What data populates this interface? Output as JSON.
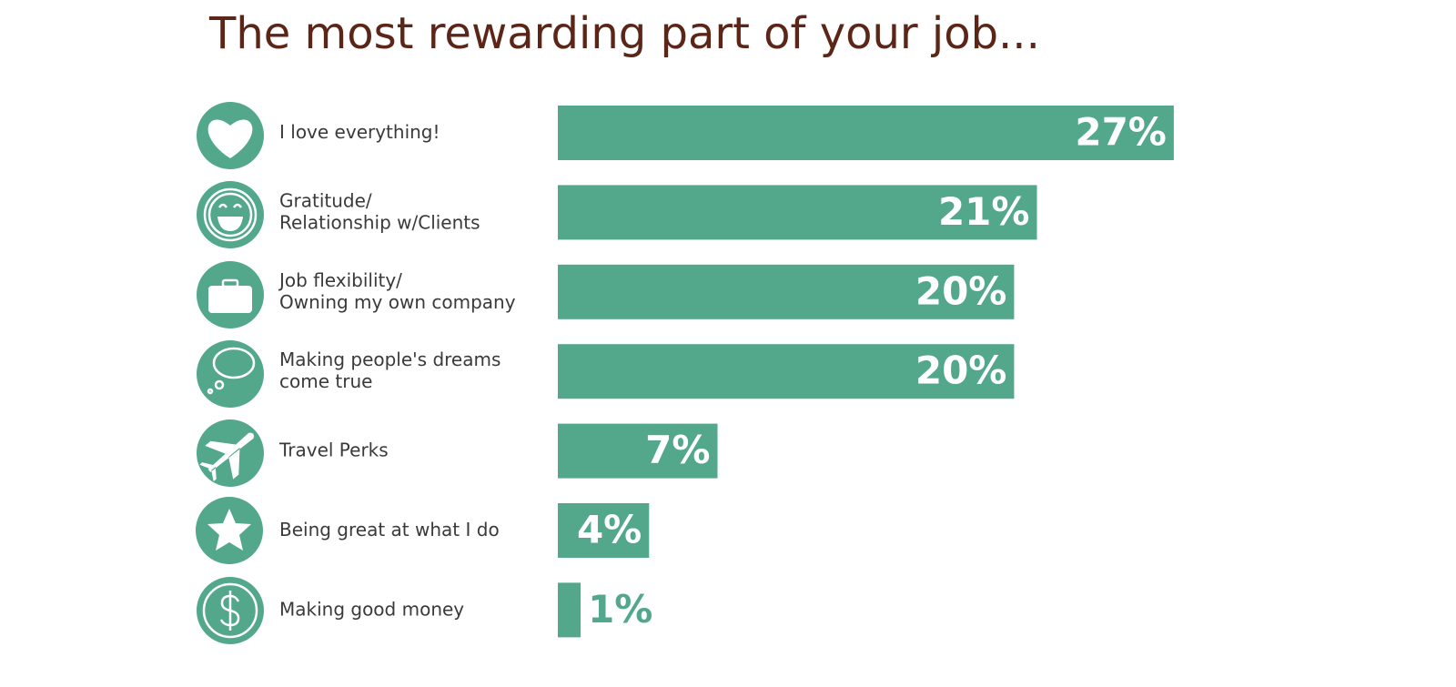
{
  "chart_data": {
    "type": "bar",
    "orientation": "horizontal",
    "title": "The most rewarding part of your job...",
    "categories": [
      "I love everything!",
      "Gratitude/\nRelationship w/Clients",
      "Job flexibility/\nOwning my own company",
      "Making people's dreams\ncome true",
      "Travel Perks",
      "Being great at what I do",
      "Making good money"
    ],
    "values": [
      27,
      21,
      20,
      20,
      7,
      4,
      1
    ],
    "value_labels": [
      "27%",
      "21%",
      "20%",
      "20%",
      "7%",
      "4%",
      "1%"
    ],
    "color": "#53a88c"
  }
}
